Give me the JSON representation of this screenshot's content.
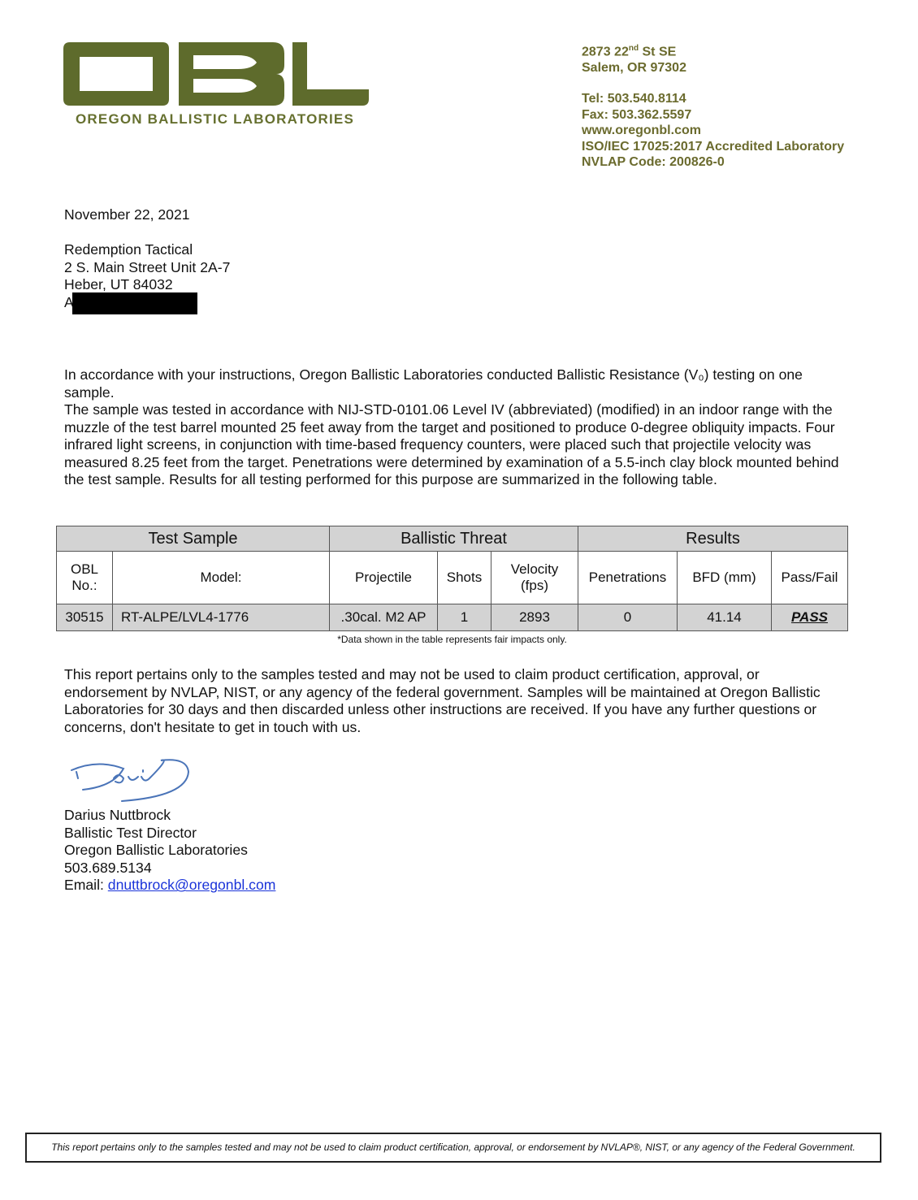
{
  "letterhead": {
    "logo_letters": "OBL",
    "logo_name": "OREGON BALLISTIC LABORATORIES",
    "brand_color": "#5e6b2c",
    "address": [
      "2873 22nd St SE",
      "Salem, OR 97302"
    ],
    "street_num": "2873 22",
    "street_sup": "nd",
    "street_rest": " St SE",
    "city": "Salem, OR 97302",
    "tel": "Tel: 503.540.8114",
    "fax": "Fax: 503.362.5597",
    "web": "www.oregonbl.com",
    "accreditation": "ISO/IEC 17025:2017 Accredited Laboratory",
    "nvlap": "NVLAP Code: 200826-0"
  },
  "date": "November 22, 2021",
  "recipient": {
    "name": "Redemption Tactical",
    "street": "2 S. Main Street Unit 2A-7",
    "city": "Heber, UT 84032",
    "attn_initial": "A"
  },
  "intro": {
    "p1": "In accordance with your instructions, Oregon Ballistic Laboratories conducted Ballistic Resistance (V₀) testing on one sample.",
    "p2": "The sample was tested in accordance with NIJ-STD-0101.06 Level IV (abbreviated) (modified) in an indoor range with the muzzle of the test barrel mounted 25 feet away from the target and positioned to produce 0-degree obliquity impacts. Four infrared light screens, in conjunction with time-based frequency counters, were placed such that projectile velocity was measured 8.25 feet from the target. Penetrations were determined by examination of a 5.5-inch clay block mounted behind the test sample. Results for all testing performed for this purpose are summarized in the following table."
  },
  "table": {
    "groups": [
      "Test Sample",
      "Ballistic Threat",
      "Results"
    ],
    "headers": [
      "OBL No.:",
      "Model:",
      "Projectile",
      "Shots",
      "Velocity (fps)",
      "Penetrations",
      "BFD (mm)",
      "Pass/Fail"
    ],
    "rows": [
      [
        "30515",
        "RT-ALPE/LVL4-1776",
        ".30cal. M2 AP",
        "1",
        "2893",
        "0",
        "41.14",
        "PASS"
      ]
    ],
    "note": "*Data shown in the table represents fair impacts only."
  },
  "closing": "This report pertains only to the samples tested and may not be used to claim product certification, approval, or endorsement by NVLAP, NIST, or any agency of the federal government. Samples will be maintained at Oregon Ballistic Laboratories for 30 days and then discarded unless other instructions are received. If you have any further questions or concerns, don't hesitate to get in touch with us.",
  "signature": {
    "signed": "Darius",
    "name": "Darius Nuttbrock",
    "title": "Ballistic Test Director",
    "org": "Oregon Ballistic Laboratories",
    "phone": "503.689.5134",
    "email_label": "Email: ",
    "email": "dnuttbrock@oregonbl.com"
  },
  "footer": "This report pertains only to the samples tested and may not be used to claim product certification, approval, or endorsement by NVLAP®, NIST, or any agency of the Federal Government."
}
